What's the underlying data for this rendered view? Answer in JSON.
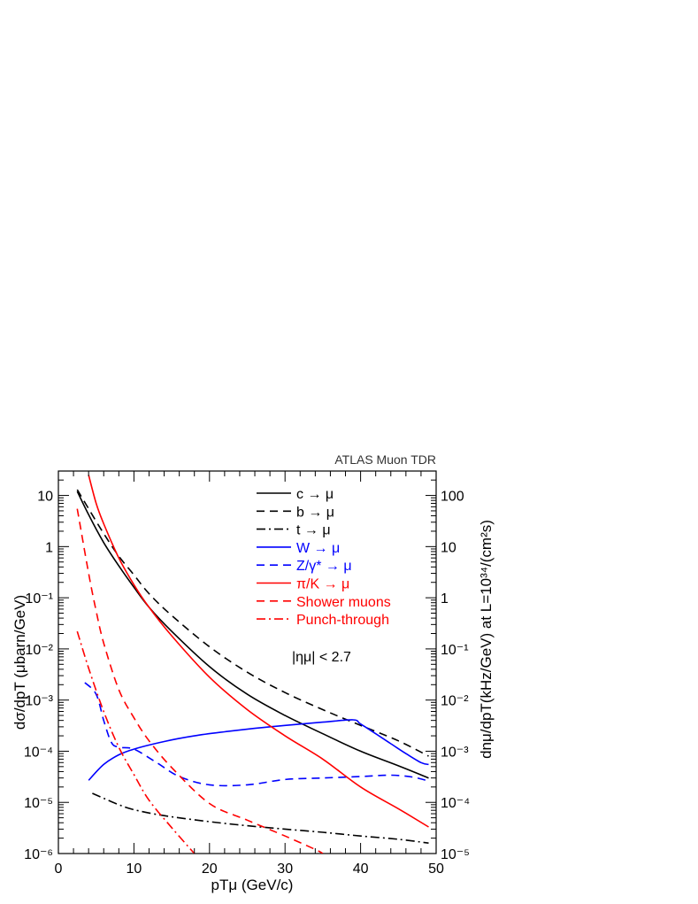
{
  "chart_data": {
    "type": "line",
    "corner_label": "ATLAS Muon TDR",
    "annotation": "|ημ| < 2.7",
    "xlabel": "pTμ (GeV/c)",
    "ylabel_left": "dσ/dpT (μbarn/GeV)",
    "ylabel_right": "dnμ/dpT(kHz/GeV) at L=10³⁴/(cm²s)",
    "xlim": [
      0,
      50
    ],
    "ylim_left": [
      1e-06,
      30
    ],
    "ylim_right": [
      1e-05,
      300
    ],
    "y_scale": "log",
    "grid": false,
    "legend_position": "top-right",
    "x_ticks": [
      "0",
      "10",
      "20",
      "30",
      "40",
      "50"
    ],
    "y_ticks_left": [
      "10⁻⁶",
      "10⁻⁵",
      "10⁻⁴",
      "10⁻³",
      "10⁻²",
      "10⁻¹",
      "1",
      "10"
    ],
    "y_ticks_right": [
      "10⁻⁵",
      "10⁻⁴",
      "10⁻³",
      "10⁻²",
      "10⁻¹",
      "1",
      "10",
      "100"
    ],
    "series": [
      {
        "name": "c → μ",
        "color": "#000000",
        "dash": "solid",
        "x": [
          2.5,
          4,
          6,
          8,
          10,
          12,
          15,
          20,
          25,
          30,
          35,
          40,
          45,
          49
        ],
        "y": [
          12,
          4.2,
          1.2,
          0.42,
          0.16,
          0.065,
          0.022,
          0.0045,
          0.0013,
          0.0005,
          0.00022,
          0.0001,
          5.2e-05,
          3e-05
        ]
      },
      {
        "name": "b → μ",
        "color": "#000000",
        "dash": "dash",
        "x": [
          2.5,
          4,
          6,
          8,
          10,
          12,
          15,
          20,
          25,
          30,
          35,
          40,
          45,
          49
        ],
        "y": [
          13,
          5.5,
          1.8,
          0.65,
          0.28,
          0.12,
          0.045,
          0.011,
          0.0035,
          0.0014,
          0.00065,
          0.00032,
          0.00016,
          8e-05
        ]
      },
      {
        "name": "t → μ",
        "color": "#000000",
        "dash": "dashdot",
        "x": [
          4.5,
          6,
          8,
          10,
          14,
          20,
          25,
          30,
          35,
          40,
          45,
          49
        ],
        "y": [
          1.5e-05,
          1.2e-05,
          9e-06,
          7.2e-06,
          5.5e-06,
          4.2e-06,
          3.5e-06,
          3e-06,
          2.6e-06,
          2.2e-06,
          1.9e-06,
          1.6e-06
        ]
      },
      {
        "name": "W → μ",
        "color": "#0000ff",
        "dash": "solid",
        "x": [
          4,
          6,
          8,
          10,
          14,
          18,
          22,
          26,
          30,
          35,
          39,
          40,
          42,
          44,
          46,
          48,
          49
        ],
        "y": [
          2.7e-05,
          5.5e-05,
          8.5e-05,
          0.00011,
          0.000155,
          0.0002,
          0.00024,
          0.00028,
          0.00032,
          0.00037,
          0.00041,
          0.00034,
          0.00022,
          0.00014,
          9e-05,
          6e-05,
          5.5e-05
        ]
      },
      {
        "name": "Z/γ* → μ",
        "color": "#0000ff",
        "dash": "dash",
        "x": [
          3.5,
          5,
          6,
          7,
          8,
          10,
          13,
          16,
          20,
          25,
          30,
          35,
          40,
          44,
          47,
          49
        ],
        "y": [
          0.0022,
          0.0013,
          0.0004,
          0.00015,
          0.00012,
          0.00011,
          6e-05,
          3.2e-05,
          2.2e-05,
          2.2e-05,
          2.8e-05,
          3e-05,
          3.2e-05,
          3.4e-05,
          3.1e-05,
          2.6e-05
        ]
      },
      {
        "name": "π/K → μ",
        "color": "#ff0000",
        "dash": "solid",
        "x": [
          4,
          5,
          6,
          8,
          10,
          12,
          15,
          20,
          25,
          30,
          35,
          40,
          45,
          49
        ],
        "y": [
          25,
          7,
          2.8,
          0.6,
          0.18,
          0.065,
          0.018,
          0.0028,
          0.00065,
          0.0002,
          7e-05,
          2e-05,
          7.5e-06,
          3.3e-06
        ]
      },
      {
        "name": "Shower muons",
        "color": "#ff0000",
        "dash": "dash",
        "x": [
          2.5,
          4,
          5,
          6,
          8,
          10,
          12,
          15,
          20,
          25,
          30,
          34,
          35
        ],
        "y": [
          5.5,
          0.3,
          0.055,
          0.013,
          0.0016,
          0.00045,
          0.00016,
          4.8e-05,
          9.5e-06,
          4.5e-06,
          2.2e-06,
          1.2e-06,
          1e-06
        ]
      },
      {
        "name": "Punch-through",
        "color": "#ff0000",
        "dash": "dashdot",
        "x": [
          2.5,
          4,
          6,
          8,
          10,
          12,
          15,
          18
        ],
        "y": [
          0.022,
          0.0042,
          0.0006,
          0.00012,
          3.5e-05,
          1.1e-05,
          3.2e-06,
          1e-06
        ]
      }
    ]
  }
}
